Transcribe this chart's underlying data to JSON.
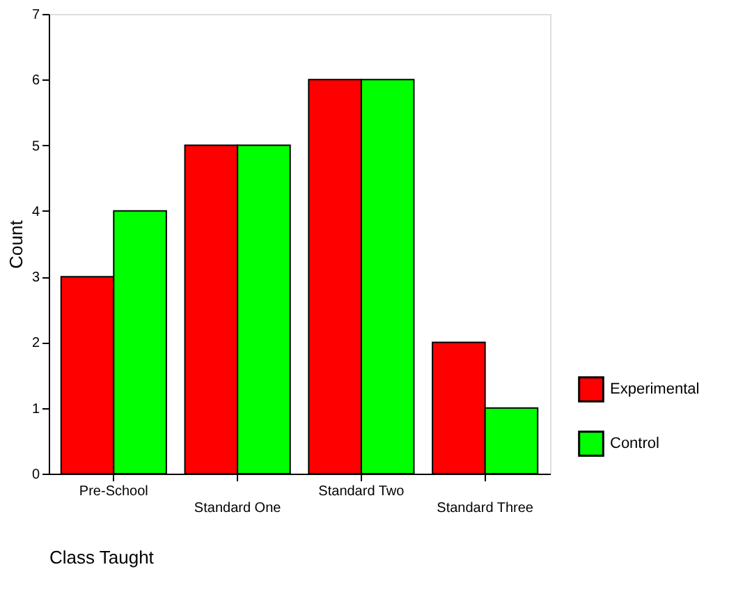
{
  "chart_data": {
    "type": "bar",
    "xlabel": "Class Taught",
    "ylabel": "Count",
    "categories": [
      "Pre-School",
      "Standard One",
      "Standard Two",
      "Standard Three"
    ],
    "series": [
      {
        "name": "Experimental",
        "color": "#ff0000",
        "values": [
          3,
          5,
          6,
          2
        ]
      },
      {
        "name": "Control",
        "color": "#00ff00",
        "values": [
          4,
          5,
          6,
          1
        ]
      }
    ],
    "ylim": [
      0,
      7
    ],
    "yticks": [
      0,
      1,
      2,
      3,
      4,
      5,
      6,
      7
    ],
    "grid": false,
    "legend": "bottom right"
  }
}
